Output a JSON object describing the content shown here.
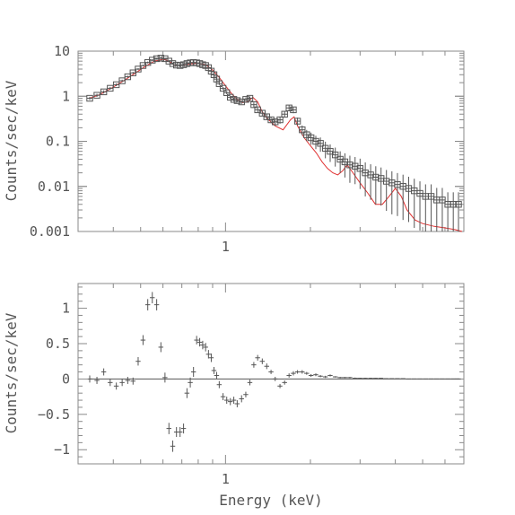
{
  "colors": {
    "frame": "#8a8a8a",
    "data": "#555555",
    "model": "#e03030",
    "text": "#555555"
  },
  "chart_data": [
    {
      "type": "scatter",
      "panel": "spectrum",
      "xscale": "log",
      "yscale": "log",
      "xlim": [
        0.3,
        7.0
      ],
      "ylim": [
        0.001,
        10
      ],
      "xlabel": "",
      "ylabel": "Counts/sec/keV",
      "x_tick_labels": [
        {
          "value": 1,
          "label": "1"
        }
      ],
      "y_tick_labels": [
        {
          "value": 0.001,
          "label": "0.001"
        },
        {
          "value": 0.01,
          "label": "0.01"
        },
        {
          "value": 0.1,
          "label": "0.1"
        },
        {
          "value": 1,
          "label": "1"
        },
        {
          "value": 10,
          "label": "10"
        }
      ],
      "series": [
        {
          "style": "squares-with-errorbars",
          "x": [
            0.33,
            0.35,
            0.37,
            0.39,
            0.41,
            0.43,
            0.45,
            0.47,
            0.49,
            0.51,
            0.53,
            0.55,
            0.57,
            0.59,
            0.61,
            0.63,
            0.65,
            0.67,
            0.69,
            0.71,
            0.73,
            0.75,
            0.77,
            0.79,
            0.81,
            0.83,
            0.85,
            0.87,
            0.89,
            0.91,
            0.93,
            0.95,
            0.98,
            1.01,
            1.04,
            1.07,
            1.1,
            1.14,
            1.18,
            1.22,
            1.26,
            1.3,
            1.35,
            1.4,
            1.45,
            1.5,
            1.56,
            1.62,
            1.68,
            1.74,
            1.8,
            1.87,
            1.94,
            2.01,
            2.09,
            2.17,
            2.26,
            2.35,
            2.45,
            2.55,
            2.65,
            2.76,
            2.88,
            3.0,
            3.13,
            3.27,
            3.41,
            3.56,
            3.72,
            3.89,
            4.07,
            4.26,
            4.46,
            4.67,
            4.89,
            5.12,
            5.36,
            5.61,
            5.87,
            6.14,
            6.42,
            6.7
          ],
          "y": [
            0.9,
            1.05,
            1.25,
            1.5,
            1.8,
            2.2,
            2.7,
            3.3,
            4.0,
            4.8,
            5.6,
            6.3,
            6.8,
            7.0,
            6.8,
            6.0,
            5.3,
            4.9,
            4.8,
            5.0,
            5.3,
            5.5,
            5.6,
            5.5,
            5.3,
            5.0,
            4.8,
            4.3,
            3.6,
            3.0,
            2.4,
            1.9,
            1.5,
            1.2,
            0.95,
            0.85,
            0.8,
            0.75,
            0.85,
            0.9,
            0.65,
            0.5,
            0.42,
            0.35,
            0.3,
            0.27,
            0.3,
            0.4,
            0.55,
            0.5,
            0.28,
            0.18,
            0.14,
            0.12,
            0.1,
            0.09,
            0.07,
            0.06,
            0.05,
            0.04,
            0.035,
            0.03,
            0.028,
            0.025,
            0.02,
            0.018,
            0.016,
            0.015,
            0.013,
            0.012,
            0.011,
            0.01,
            0.009,
            0.008,
            0.007,
            0.006,
            0.006,
            0.005,
            0.005,
            0.004,
            0.004,
            0.004
          ],
          "err_frac": [
            0.08,
            0.08,
            0.08,
            0.07,
            0.07,
            0.06,
            0.06,
            0.05,
            0.05,
            0.05,
            0.05,
            0.05,
            0.05,
            0.05,
            0.05,
            0.05,
            0.05,
            0.05,
            0.05,
            0.05,
            0.05,
            0.05,
            0.05,
            0.05,
            0.05,
            0.05,
            0.05,
            0.05,
            0.06,
            0.06,
            0.06,
            0.07,
            0.07,
            0.08,
            0.08,
            0.09,
            0.09,
            0.1,
            0.1,
            0.1,
            0.12,
            0.12,
            0.14,
            0.15,
            0.16,
            0.18,
            0.18,
            0.16,
            0.15,
            0.16,
            0.2,
            0.25,
            0.28,
            0.3,
            0.33,
            0.35,
            0.4,
            0.42,
            0.45,
            0.5,
            0.55,
            0.6,
            0.6,
            0.65,
            0.7,
            0.72,
            0.75,
            0.75,
            0.78,
            0.8,
            0.8,
            0.82,
            0.82,
            0.85,
            0.85,
            0.85,
            0.85,
            0.85,
            0.85,
            0.85,
            0.85,
            0.85
          ]
        },
        {
          "style": "line",
          "x": [
            0.33,
            0.36,
            0.4,
            0.44,
            0.48,
            0.52,
            0.56,
            0.6,
            0.62,
            0.64,
            0.66,
            0.7,
            0.75,
            0.8,
            0.85,
            0.9,
            0.95,
            1.0,
            1.05,
            1.1,
            1.15,
            1.2,
            1.25,
            1.3,
            1.35,
            1.4,
            1.5,
            1.6,
            1.7,
            1.75,
            1.8,
            1.9,
            2.0,
            2.1,
            2.2,
            2.3,
            2.4,
            2.5,
            2.6,
            2.7,
            2.8,
            3.0,
            3.2,
            3.4,
            3.6,
            3.8,
            4.0,
            4.2,
            4.4,
            4.7,
            5.0,
            5.5,
            6.0,
            6.5,
            6.9
          ],
          "y": [
            0.9,
            1.1,
            1.6,
            2.3,
            3.3,
            4.6,
            6.0,
            6.6,
            6.3,
            5.6,
            4.9,
            4.8,
            5.2,
            5.4,
            5.0,
            3.8,
            2.6,
            1.7,
            1.15,
            0.85,
            0.72,
            0.75,
            0.95,
            0.75,
            0.45,
            0.33,
            0.22,
            0.18,
            0.3,
            0.35,
            0.22,
            0.12,
            0.08,
            0.055,
            0.035,
            0.025,
            0.02,
            0.018,
            0.022,
            0.03,
            0.022,
            0.012,
            0.007,
            0.004,
            0.004,
            0.006,
            0.009,
            0.006,
            0.003,
            0.0018,
            0.0015,
            0.0013,
            0.0012,
            0.0011,
            0.001
          ]
        }
      ]
    },
    {
      "type": "scatter",
      "panel": "residuals",
      "xscale": "log",
      "yscale": "linear",
      "xlim": [
        0.3,
        7.0
      ],
      "ylim": [
        -1.2,
        1.35
      ],
      "xlabel": "Energy (keV)",
      "ylabel": "Counts/sec/keV",
      "x_tick_labels": [
        {
          "value": 1,
          "label": "1"
        }
      ],
      "y_tick_labels": [
        {
          "value": 1,
          "label": "1"
        },
        {
          "value": 0.5,
          "label": "0.5"
        },
        {
          "value": 0,
          "label": "0"
        },
        {
          "value": -0.5,
          "label": "−0.5"
        },
        {
          "value": -1,
          "label": "−1"
        }
      ],
      "series": [
        {
          "style": "crosses-with-errorbars",
          "x": [
            0.33,
            0.35,
            0.37,
            0.39,
            0.41,
            0.43,
            0.45,
            0.47,
            0.49,
            0.51,
            0.53,
            0.55,
            0.57,
            0.59,
            0.61,
            0.63,
            0.65,
            0.67,
            0.69,
            0.71,
            0.73,
            0.75,
            0.77,
            0.79,
            0.81,
            0.83,
            0.85,
            0.87,
            0.89,
            0.91,
            0.93,
            0.95,
            0.98,
            1.01,
            1.04,
            1.07,
            1.1,
            1.14,
            1.18,
            1.22,
            1.26,
            1.3,
            1.35,
            1.4,
            1.45,
            1.5,
            1.56,
            1.62,
            1.68,
            1.74,
            1.8,
            1.87,
            1.94,
            2.01,
            2.09,
            2.17,
            2.26,
            2.35,
            2.45,
            2.55,
            2.65,
            2.76,
            2.88,
            3.0,
            3.13,
            3.27,
            3.41,
            3.56,
            3.72,
            3.89,
            4.07,
            4.26,
            4.46,
            4.67,
            4.89,
            5.12,
            5.36,
            5.61,
            5.87,
            6.14,
            6.42,
            6.7
          ],
          "y": [
            0.0,
            -0.02,
            0.1,
            -0.05,
            -0.1,
            -0.05,
            -0.02,
            -0.03,
            0.25,
            0.55,
            1.05,
            1.15,
            1.05,
            0.45,
            0.02,
            -0.7,
            -0.95,
            -0.75,
            -0.75,
            -0.7,
            -0.2,
            -0.05,
            0.1,
            0.55,
            0.52,
            0.48,
            0.45,
            0.35,
            0.3,
            0.12,
            0.05,
            -0.08,
            -0.25,
            -0.3,
            -0.32,
            -0.3,
            -0.35,
            -0.28,
            -0.22,
            -0.05,
            0.2,
            0.3,
            0.25,
            0.18,
            0.1,
            0.0,
            -0.1,
            -0.05,
            0.05,
            0.08,
            0.1,
            0.1,
            0.08,
            0.05,
            0.06,
            0.04,
            0.03,
            0.05,
            0.03,
            0.02,
            0.02,
            0.02,
            0.01,
            0.01,
            0.01,
            0.01,
            0.01,
            0.01,
            0.005,
            0.005,
            0.005,
            0.005,
            0.0,
            0.0,
            0.0,
            0.0,
            0.0,
            0.0,
            0.0,
            0.0,
            0.0,
            0.0
          ],
          "yerr": [
            0.05,
            0.05,
            0.05,
            0.05,
            0.05,
            0.05,
            0.05,
            0.05,
            0.06,
            0.07,
            0.08,
            0.08,
            0.08,
            0.07,
            0.07,
            0.08,
            0.08,
            0.07,
            0.07,
            0.07,
            0.07,
            0.07,
            0.07,
            0.06,
            0.06,
            0.06,
            0.06,
            0.06,
            0.06,
            0.05,
            0.05,
            0.05,
            0.05,
            0.05,
            0.05,
            0.05,
            0.05,
            0.05,
            0.04,
            0.04,
            0.04,
            0.04,
            0.04,
            0.04,
            0.03,
            0.03,
            0.03,
            0.03,
            0.03,
            0.03,
            0.025,
            0.025,
            0.02,
            0.02,
            0.02,
            0.015,
            0.015,
            0.015,
            0.01,
            0.01,
            0.01,
            0.01,
            0.01,
            0.008,
            0.008,
            0.008,
            0.006,
            0.006,
            0.006,
            0.005,
            0.005,
            0.005,
            0.005,
            0.004,
            0.004,
            0.004,
            0.004,
            0.004,
            0.003,
            0.003,
            0.003,
            0.003
          ]
        }
      ]
    }
  ]
}
